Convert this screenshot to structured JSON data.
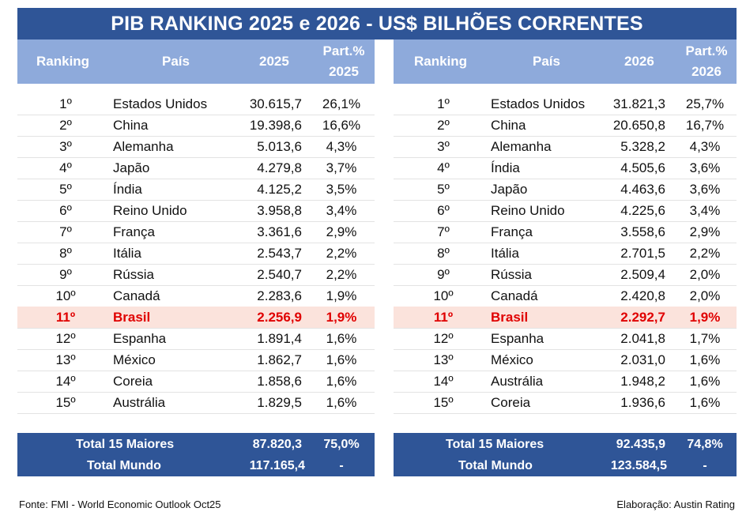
{
  "title": "PIB RANKING 2025 e 2026  -  US$ BILHÕES CORRENTES",
  "left": {
    "headers": {
      "ranking": "Ranking",
      "country": "País",
      "value": "2025",
      "part_line1": "Part.%",
      "part_line2": "2025"
    },
    "rows": [
      {
        "rank": "1º",
        "country": "Estados Unidos",
        "value": "30.615,7",
        "part": "26,1%"
      },
      {
        "rank": "2º",
        "country": "China",
        "value": "19.398,6",
        "part": "16,6%"
      },
      {
        "rank": "3º",
        "country": "Alemanha",
        "value": "5.013,6",
        "part": "4,3%"
      },
      {
        "rank": "4º",
        "country": "Japão",
        "value": "4.279,8",
        "part": "3,7%"
      },
      {
        "rank": "5º",
        "country": "Índia",
        "value": "4.125,2",
        "part": "3,5%"
      },
      {
        "rank": "6º",
        "country": "Reino Unido",
        "value": "3.958,8",
        "part": "3,4%"
      },
      {
        "rank": "7º",
        "country": "França",
        "value": "3.361,6",
        "part": "2,9%"
      },
      {
        "rank": "8º",
        "country": "Itália",
        "value": "2.543,7",
        "part": "2,2%"
      },
      {
        "rank": "9º",
        "country": "Rússia",
        "value": "2.540,7",
        "part": "2,2%"
      },
      {
        "rank": "10º",
        "country": "Canadá",
        "value": "2.283,6",
        "part": "1,9%"
      },
      {
        "rank": "11º",
        "country": "Brasil",
        "value": "2.256,9",
        "part": "1,9%",
        "highlight": true
      },
      {
        "rank": "12º",
        "country": "Espanha",
        "value": "1.891,4",
        "part": "1,6%"
      },
      {
        "rank": "13º",
        "country": "México",
        "value": "1.862,7",
        "part": "1,6%"
      },
      {
        "rank": "14º",
        "country": "Coreia",
        "value": "1.858,6",
        "part": "1,6%"
      },
      {
        "rank": "15º",
        "country": "Austrália",
        "value": "1.829,5",
        "part": "1,6%"
      }
    ],
    "totals": [
      {
        "label": "Total 15 Maiores",
        "value": "87.820,3",
        "part": "75,0%"
      },
      {
        "label": "Total Mundo",
        "value": "117.165,4",
        "part": "-"
      }
    ]
  },
  "right": {
    "headers": {
      "ranking": "Ranking",
      "country": "País",
      "value": "2026",
      "part_line1": "Part.%",
      "part_line2": "2026"
    },
    "rows": [
      {
        "rank": "1º",
        "country": "Estados Unidos",
        "value": "31.821,3",
        "part": "25,7%"
      },
      {
        "rank": "2º",
        "country": "China",
        "value": "20.650,8",
        "part": "16,7%"
      },
      {
        "rank": "3º",
        "country": "Alemanha",
        "value": "5.328,2",
        "part": "4,3%"
      },
      {
        "rank": "4º",
        "country": "Índia",
        "value": "4.505,6",
        "part": "3,6%"
      },
      {
        "rank": "5º",
        "country": "Japão",
        "value": "4.463,6",
        "part": "3,6%"
      },
      {
        "rank": "6º",
        "country": "Reino Unido",
        "value": "4.225,6",
        "part": "3,4%"
      },
      {
        "rank": "7º",
        "country": "França",
        "value": "3.558,6",
        "part": "2,9%"
      },
      {
        "rank": "8º",
        "country": "Itália",
        "value": "2.701,5",
        "part": "2,2%"
      },
      {
        "rank": "9º",
        "country": "Rússia",
        "value": "2.509,4",
        "part": "2,0%"
      },
      {
        "rank": "10º",
        "country": "Canadá",
        "value": "2.420,8",
        "part": "2,0%"
      },
      {
        "rank": "11º",
        "country": "Brasil",
        "value": "2.292,7",
        "part": "1,9%",
        "highlight": true
      },
      {
        "rank": "12º",
        "country": "Espanha",
        "value": "2.041,8",
        "part": "1,7%"
      },
      {
        "rank": "13º",
        "country": "México",
        "value": "2.031,0",
        "part": "1,6%"
      },
      {
        "rank": "14º",
        "country": "Austrália",
        "value": "1.948,2",
        "part": "1,6%"
      },
      {
        "rank": "15º",
        "country": "Coreia",
        "value": "1.936,6",
        "part": "1,6%"
      }
    ],
    "totals": [
      {
        "label": "Total 15 Maiores",
        "value": "92.435,9",
        "part": "74,8%"
      },
      {
        "label": "Total Mundo",
        "value": "123.584,5",
        "part": "-"
      }
    ]
  },
  "source": "Fonte: FMI - World Economic Outlook Oct25",
  "credit": "Elaboração: Austin Rating",
  "colors": {
    "title_bg": "#2f5597",
    "header_bg": "#8eaadb",
    "highlight_bg": "#fbe3dc",
    "highlight_text": "#e00000"
  }
}
